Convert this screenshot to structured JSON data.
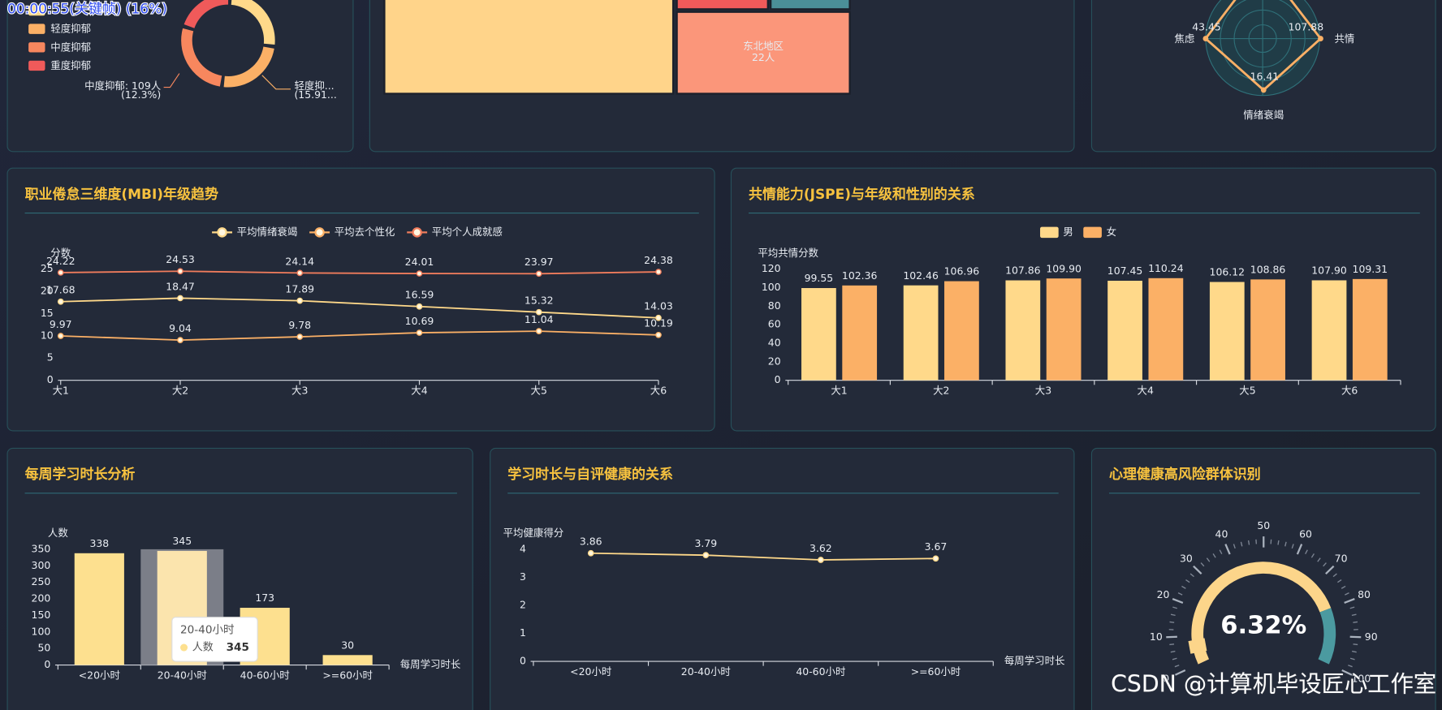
{
  "overlay": "00:00:55(关键帧) (16%)",
  "watermark": "CSDN @计算机毕设匠心工作室",
  "donut": {
    "legend": [
      {
        "color": "#ffd98a"
      },
      {
        "name": "轻度抑郁",
        "color": "#fbb066"
      },
      {
        "name": "中度抑郁",
        "color": "#f7875e"
      },
      {
        "name": "重度抑郁",
        "color": "#f05a5a"
      }
    ],
    "labels": [
      {
        "text": "中度抑郁: 109人",
        "sub": "(12.3%)"
      },
      {
        "text": "轻度抑...",
        "sub": "(15.91..."
      }
    ]
  },
  "treemap": {
    "nodes": [
      {
        "label": "东北地区",
        "value_label": "22人"
      }
    ]
  },
  "radar": {
    "indicators": [
      "焦虑",
      "共情",
      "情绪衰竭"
    ],
    "value_labels": [
      "43.45",
      "107.88",
      "16.41"
    ]
  },
  "chart_data": [
    {
      "type": "line",
      "title": "职业倦怠三维度(MBI)年级趋势",
      "y_label": "分数",
      "categories": [
        "大1",
        "大2",
        "大3",
        "大4",
        "大5",
        "大6"
      ],
      "series": [
        {
          "name": "平均情绪衰竭",
          "color": "#ffd98a",
          "values": [
            17.68,
            18.47,
            17.89,
            16.59,
            15.32,
            14.03
          ]
        },
        {
          "name": "平均去个性化",
          "color": "#fbb066",
          "values": [
            9.97,
            9.04,
            9.78,
            10.69,
            11.04,
            10.19
          ]
        },
        {
          "name": "平均个人成就感",
          "color": "#f07c5c",
          "values": [
            24.22,
            24.53,
            24.14,
            24.01,
            23.97,
            24.38
          ]
        }
      ],
      "ylim": [
        0,
        25
      ],
      "yticks": [
        0,
        5,
        10,
        15,
        20,
        25
      ],
      "legend": "top"
    },
    {
      "type": "bar",
      "title": "共情能力(JSPE)与年级和性别的关系",
      "y_label": "平均共情分数",
      "categories": [
        "大1",
        "大2",
        "大3",
        "大4",
        "大5",
        "大6"
      ],
      "series": [
        {
          "name": "男",
          "color": "#ffd98a",
          "values": [
            99.55,
            102.46,
            107.86,
            107.45,
            106.12,
            107.9
          ],
          "value_labels": [
            "99.55",
            "102.46",
            "107.86",
            "107.45",
            "106.12",
            "107.90"
          ]
        },
        {
          "name": "女",
          "color": "#fbb066",
          "values": [
            102.36,
            106.96,
            109.9,
            110.24,
            108.86,
            109.31
          ],
          "value_labels": [
            "102.36",
            "106.96",
            "109.90",
            "110.24",
            "108.86",
            "109.31"
          ]
        }
      ],
      "ylim": [
        0,
        120
      ],
      "yticks": [
        0,
        20,
        40,
        60,
        80,
        100,
        120
      ],
      "legend": "top"
    },
    {
      "type": "bar",
      "title": "每周学习时长分析",
      "y_label": "人数",
      "x_label": "每周学习时长",
      "categories": [
        "<20小时",
        "20-40小时",
        "40-60小时",
        ">=60小时"
      ],
      "series": [
        {
          "name": "人数",
          "color": "#fde08f",
          "values": [
            338,
            345,
            173,
            30
          ]
        }
      ],
      "ylim": [
        0,
        350
      ],
      "yticks": [
        0,
        50,
        100,
        150,
        200,
        250,
        300,
        350
      ]
    },
    {
      "type": "line",
      "title": "学习时长与自评健康的关系",
      "y_label": "平均健康得分",
      "x_label": "每周学习时长",
      "categories": [
        "<20小时",
        "20-40小时",
        "40-60小时",
        ">=60小时"
      ],
      "series": [
        {
          "color": "#ffd98a",
          "values": [
            3.86,
            3.79,
            3.62,
            3.67
          ]
        }
      ],
      "ylim": [
        0,
        4
      ],
      "yticks": [
        0,
        1,
        2,
        3,
        4
      ]
    },
    {
      "type": "gauge",
      "title": "心理健康高风险群体识别",
      "value": 6.32,
      "value_label": "6.32%",
      "lim": [
        0,
        100
      ],
      "ticks": [
        0,
        10,
        20,
        30,
        40,
        50,
        60,
        70,
        80,
        90,
        100
      ],
      "color_stops": [
        {
          "to": 80,
          "color": "#fcd58a"
        },
        {
          "to": 100,
          "color": "#4b9aa0"
        }
      ]
    }
  ]
}
